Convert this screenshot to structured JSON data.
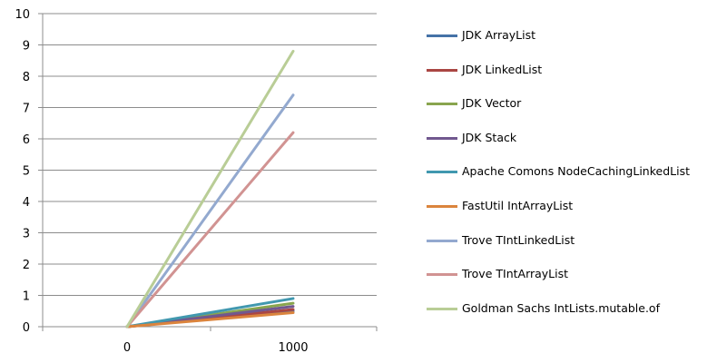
{
  "chart_data": {
    "type": "line",
    "categories": [
      "0",
      "1000"
    ],
    "x": [
      0,
      1000
    ],
    "ylim": [
      0,
      10
    ],
    "yticks": [
      0,
      1,
      2,
      3,
      4,
      5,
      6,
      7,
      8,
      9,
      10
    ],
    "ytick_labels": [
      "0",
      "1",
      "2",
      "3",
      "4",
      "5",
      "6",
      "7",
      "8",
      "9",
      "10"
    ],
    "grid": "horizontal",
    "legend_position": "right",
    "title": "",
    "xlabel": "",
    "ylabel": "",
    "series": [
      {
        "name": "JDK ArrayList",
        "color": "#4572A7",
        "values": [
          0,
          0.5
        ]
      },
      {
        "name": "JDK LinkedList",
        "color": "#AA4643",
        "values": [
          0,
          0.55
        ]
      },
      {
        "name": "JDK Vector",
        "color": "#89A54E",
        "values": [
          0,
          0.75
        ]
      },
      {
        "name": "JDK Stack",
        "color": "#71588F",
        "values": [
          0,
          0.65
        ]
      },
      {
        "name": "Apache Comons NodeCachingLinkedList",
        "color": "#4198AF",
        "values": [
          0,
          0.9
        ]
      },
      {
        "name": "FastUtil IntArrayList",
        "color": "#DB843D",
        "values": [
          0,
          0.45
        ]
      },
      {
        "name": "Trove TIntLinkedList",
        "color": "#93A9CF",
        "values": [
          0,
          7.4
        ]
      },
      {
        "name": "Trove TIntArrayList",
        "color": "#D19392",
        "values": [
          0,
          6.2
        ]
      },
      {
        "name": "Goldman Sachs  IntLists.mutable.of",
        "color": "#B9CD96",
        "values": [
          0,
          8.8
        ]
      }
    ]
  }
}
